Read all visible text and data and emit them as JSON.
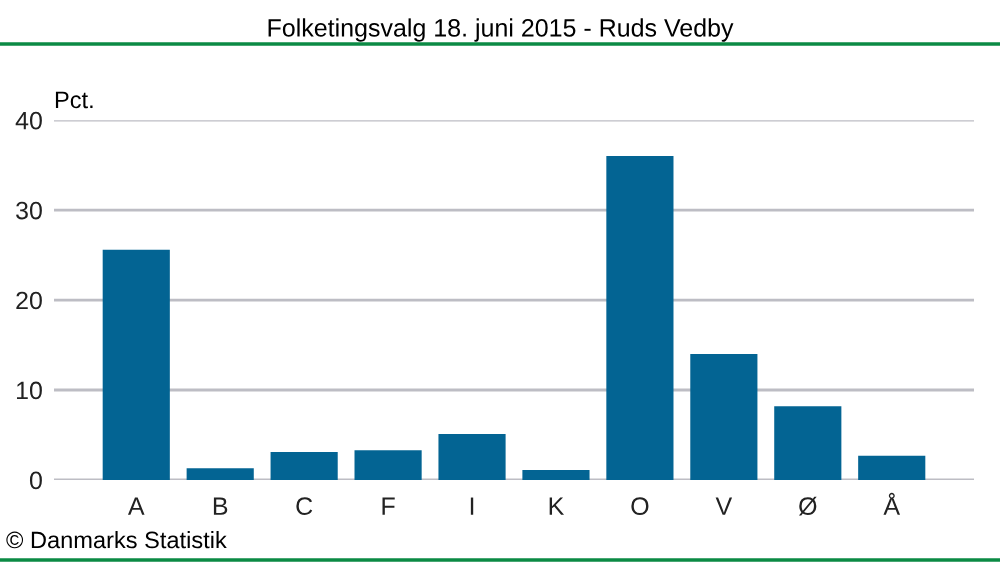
{
  "chart_data": {
    "type": "bar",
    "title": "Folketingsvalg 18. juni 2015 - Ruds Vedby",
    "ylabel": "Pct.",
    "categories": [
      "A",
      "B",
      "C",
      "F",
      "I",
      "K",
      "O",
      "V",
      "Ø",
      "Å"
    ],
    "values": [
      25.6,
      1.3,
      3.1,
      3.3,
      5.1,
      1.1,
      36.0,
      14.0,
      8.2,
      2.7
    ],
    "color": "#036493",
    "ylim": [
      0,
      40
    ],
    "yticks": [
      0,
      10,
      20,
      30,
      40
    ],
    "grid": "y",
    "annotations": [
      "© Danmarks Statistik"
    ]
  }
}
